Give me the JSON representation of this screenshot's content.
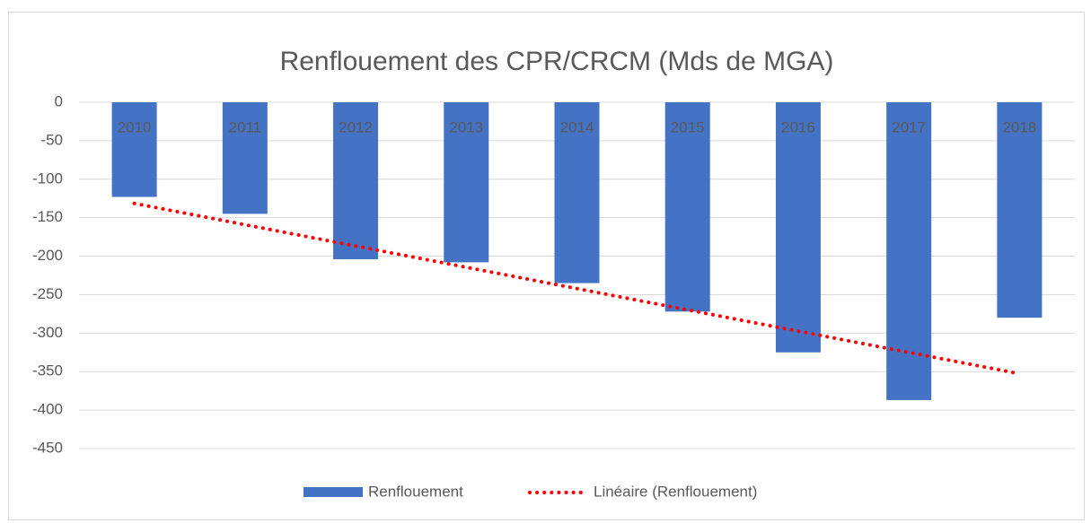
{
  "chart_data": {
    "type": "bar",
    "title": "Renflouement des CPR/CRCM (Mds de MGA)",
    "categories": [
      "2010",
      "2011",
      "2012",
      "2013",
      "2014",
      "2015",
      "2016",
      "2017",
      "2018"
    ],
    "series": [
      {
        "name": "Renflouement",
        "color": "#4472c4",
        "values": [
          -123,
          -145,
          -204,
          -208,
          -235,
          -272,
          -325,
          -387,
          -280
        ]
      }
    ],
    "trendline": {
      "name": "Linéaire (Renflouement)",
      "color": "#ff0000",
      "kind": "linear"
    },
    "ylim": [
      -450,
      0
    ],
    "yticks": [
      0,
      -50,
      -100,
      -150,
      -200,
      -250,
      -300,
      -350,
      -400,
      -450
    ],
    "grid": true,
    "legend": "bottom"
  }
}
